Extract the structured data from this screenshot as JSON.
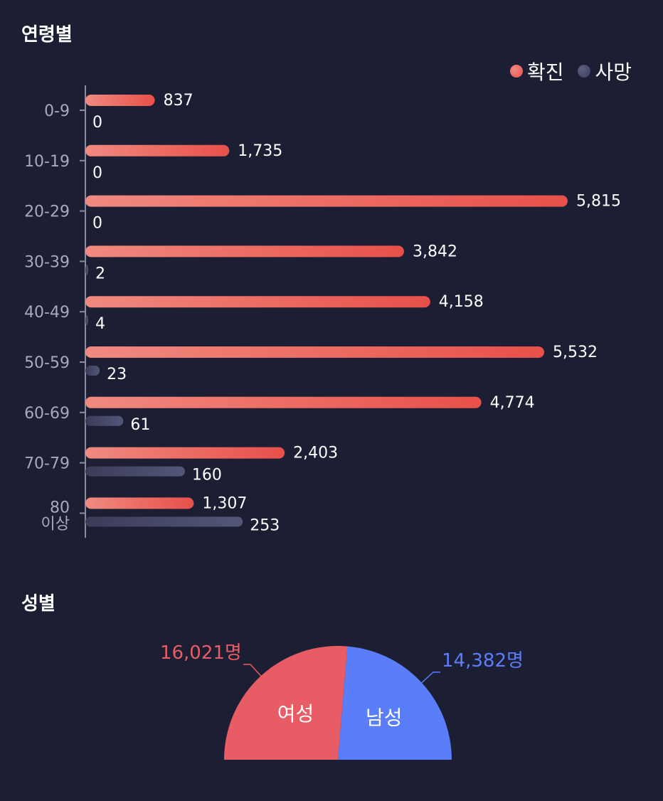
{
  "chart_data": [
    {
      "type": "bar",
      "orientation": "horizontal",
      "title": "연령별",
      "categories": [
        "0-9",
        "10-19",
        "20-29",
        "30-39",
        "40-49",
        "50-59",
        "60-69",
        "70-79",
        "80 이상"
      ],
      "series": [
        {
          "name": "확진",
          "values": [
            837,
            1735,
            5815,
            3842,
            4158,
            5532,
            4774,
            2403,
            1307
          ],
          "color": "#e8504a",
          "color_light": "#f08a80"
        },
        {
          "name": "사망",
          "values": [
            0,
            0,
            0,
            2,
            4,
            23,
            61,
            160,
            253
          ],
          "color": "#3a3c58",
          "color_light": "#545678"
        }
      ],
      "value_labels": {
        "확진": [
          "837",
          "1,735",
          "5,815",
          "3,842",
          "4,158",
          "5,532",
          "4,774",
          "2,403",
          "1,307"
        ],
        "사망": [
          "0",
          "0",
          "0",
          "2",
          "4",
          "23",
          "61",
          "160",
          "253"
        ]
      },
      "xlim": [
        0,
        5815
      ],
      "legend": "top-right",
      "grid": false
    },
    {
      "type": "pie",
      "variant": "semicircle",
      "title": "성별",
      "slices": [
        {
          "label": "여성",
          "value": 16021,
          "value_label": "16,021명",
          "color": "#e85c65"
        },
        {
          "label": "남성",
          "value": 14382,
          "value_label": "14,382명",
          "color": "#5a7dfa"
        }
      ]
    }
  ]
}
